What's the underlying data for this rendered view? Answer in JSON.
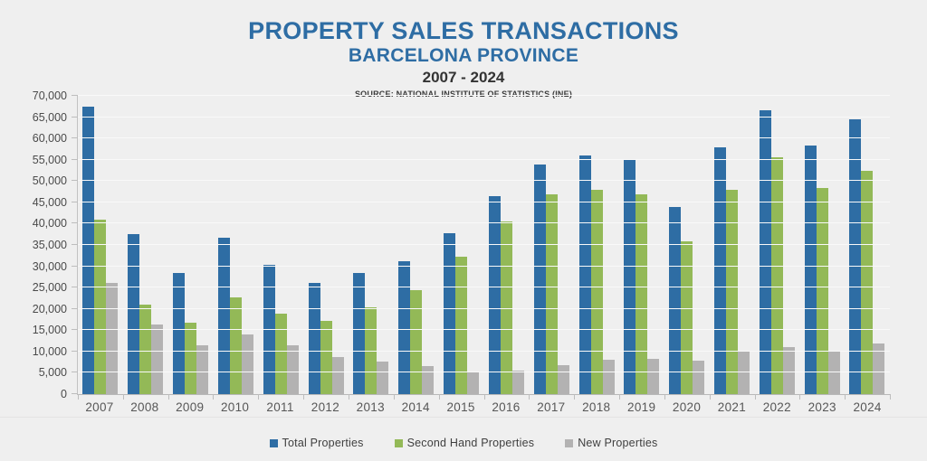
{
  "header": {
    "title": "PROPERTY SALES TRANSACTIONS",
    "subtitle": "BARCELONA PROVINCE",
    "period": "2007 - 2024",
    "source": "SOURCE: NATIONAL INSTITUTE OF STATISTICS (INE)"
  },
  "colors": {
    "title_blue": "#2e6da4",
    "total_properties": "#2e6da4",
    "second_hand_properties": "#93b957",
    "new_properties": "#b3b2b2",
    "background": "#efefef",
    "gridline": "#f9f9f9",
    "axis": "#bdbdbd"
  },
  "chart_data": {
    "type": "bar",
    "title": "PROPERTY SALES TRANSACTIONS",
    "subtitle": "BARCELONA PROVINCE",
    "period": "2007 - 2024",
    "source": "SOURCE: NATIONAL INSTITUTE OF STATISTICS (INE)",
    "categories": [
      "2007",
      "2008",
      "2009",
      "2010",
      "2011",
      "2012",
      "2013",
      "2014",
      "2015",
      "2016",
      "2017",
      "2018",
      "2019",
      "2020",
      "2021",
      "2022",
      "2023",
      "2024"
    ],
    "series": [
      {
        "name": "Total Properties",
        "color": "#2e6da4",
        "values": [
          67500,
          37600,
          28400,
          36800,
          30400,
          26100,
          28500,
          31200,
          37700,
          46500,
          53800,
          56000,
          55200,
          44000,
          58000,
          66700,
          58400,
          64500
        ]
      },
      {
        "name": "Second Hand Properties",
        "color": "#93b957",
        "values": [
          41000,
          21000,
          16700,
          22600,
          18800,
          17200,
          20400,
          24500,
          32300,
          40600,
          46900,
          47900,
          46800,
          35800,
          47900,
          55600,
          48300,
          52300
        ]
      },
      {
        "name": "New Properties",
        "color": "#b3b2b2",
        "values": [
          26000,
          16400,
          11400,
          13900,
          11400,
          8600,
          7700,
          6600,
          5400,
          5600,
          6700,
          8000,
          8300,
          7900,
          10000,
          11000,
          9900,
          11800
        ]
      }
    ],
    "xlabel": "",
    "ylabel": "",
    "ylim": [
      0,
      70000
    ],
    "ytick_step": 5000,
    "grid": true,
    "legend_position": "bottom"
  }
}
